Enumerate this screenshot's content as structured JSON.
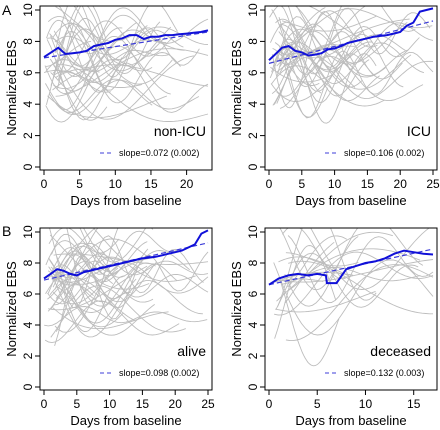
{
  "chart_data": [
    {
      "panel_label": "A",
      "type": "line",
      "group_label": "non-ICU",
      "xlabel": "Days from baseline",
      "ylabel": "Normalized EBS",
      "xlim": [
        0,
        23
      ],
      "ylim": [
        0,
        10
      ],
      "xticks": [
        0,
        5,
        10,
        15,
        20
      ],
      "yticks": [
        0,
        2,
        4,
        6,
        8,
        10
      ],
      "legend": "slope=0.072 (0.002)",
      "legend_position": "bottom-right",
      "trend_line": {
        "x": [
          0,
          23
        ],
        "y": [
          6.95,
          8.6
        ]
      },
      "mean_curve": {
        "x": [
          0,
          1,
          2,
          3,
          4,
          5,
          6,
          7,
          8,
          9,
          10,
          11,
          12,
          13,
          14,
          15,
          16,
          17,
          18,
          19,
          20,
          21,
          22,
          23
        ],
        "y": [
          7.0,
          7.3,
          7.6,
          7.2,
          7.25,
          7.3,
          7.4,
          7.7,
          7.8,
          7.9,
          8.1,
          8.2,
          8.4,
          8.4,
          8.15,
          8.3,
          8.3,
          8.4,
          8.4,
          8.45,
          8.5,
          8.55,
          8.6,
          8.7
        ]
      }
    },
    {
      "panel_label": "",
      "type": "line",
      "group_label": "ICU",
      "xlabel": "Days from baseline",
      "ylabel": "Normalized EBS",
      "xlim": [
        0,
        25
      ],
      "ylim": [
        0,
        10
      ],
      "xticks": [
        0,
        5,
        10,
        15,
        20,
        25
      ],
      "yticks": [
        0,
        2,
        4,
        6,
        8,
        10
      ],
      "legend": "slope=0.106 (0.002)",
      "legend_position": "bottom-right",
      "trend_line": {
        "x": [
          0,
          25
        ],
        "y": [
          6.6,
          9.3
        ]
      },
      "mean_curve": {
        "x": [
          0,
          1,
          2,
          3,
          4,
          5,
          6,
          7,
          8,
          9,
          10,
          11,
          12,
          13,
          14,
          15,
          16,
          17,
          18,
          19,
          20,
          21,
          22,
          23,
          24,
          25
        ],
        "y": [
          6.8,
          7.2,
          7.6,
          7.7,
          7.4,
          7.3,
          7.1,
          7.15,
          7.25,
          7.5,
          7.55,
          7.7,
          7.9,
          8.0,
          8.1,
          8.2,
          8.3,
          8.35,
          8.4,
          8.5,
          8.6,
          9.0,
          9.2,
          9.9,
          10.0,
          10.1
        ]
      }
    },
    {
      "panel_label": "B",
      "type": "line",
      "group_label": "alive",
      "xlabel": "Days from baseline",
      "ylabel": "Normalized EBS",
      "xlim": [
        0,
        25
      ],
      "ylim": [
        0,
        10
      ],
      "xticks": [
        0,
        5,
        10,
        15,
        20,
        25
      ],
      "yticks": [
        0,
        2,
        4,
        6,
        8,
        10
      ],
      "legend": "slope=0.098 (0.002)",
      "legend_position": "bottom-right",
      "trend_line": {
        "x": [
          0,
          25
        ],
        "y": [
          6.9,
          9.3
        ]
      },
      "mean_curve": {
        "x": [
          0,
          1,
          2,
          3,
          4,
          5,
          6,
          7,
          8,
          9,
          10,
          11,
          12,
          13,
          14,
          15,
          16,
          17,
          18,
          19,
          20,
          21,
          22,
          23,
          24,
          25
        ],
        "y": [
          7.0,
          7.3,
          7.6,
          7.5,
          7.3,
          7.2,
          7.4,
          7.5,
          7.6,
          7.7,
          7.8,
          7.9,
          8.0,
          8.1,
          8.2,
          8.3,
          8.35,
          8.4,
          8.5,
          8.6,
          8.7,
          8.8,
          9.0,
          9.2,
          9.9,
          10.1
        ]
      }
    },
    {
      "panel_label": "",
      "type": "line",
      "group_label": "deceased",
      "xlabel": "Days from baseline",
      "ylabel": "Normalized EBS",
      "xlim": [
        0,
        17
      ],
      "ylim": [
        0,
        10
      ],
      "xticks": [
        0,
        5,
        10,
        15
      ],
      "yticks": [
        0,
        2,
        4,
        6,
        8,
        10
      ],
      "legend": "slope=0.132 (0.003)",
      "legend_position": "bottom-right",
      "trend_line": {
        "x": [
          0,
          17
        ],
        "y": [
          6.6,
          8.9
        ]
      },
      "mean_curve": {
        "x": [
          0,
          1,
          2,
          3,
          4,
          5,
          5.9,
          6,
          7,
          8,
          9,
          10,
          11,
          12,
          13,
          14,
          15,
          16,
          17
        ],
        "y": [
          6.6,
          7.0,
          7.2,
          7.3,
          7.2,
          7.3,
          7.2,
          6.7,
          6.7,
          7.6,
          7.8,
          8.0,
          8.1,
          8.3,
          8.6,
          8.8,
          8.7,
          8.6,
          8.55
        ]
      }
    }
  ]
}
